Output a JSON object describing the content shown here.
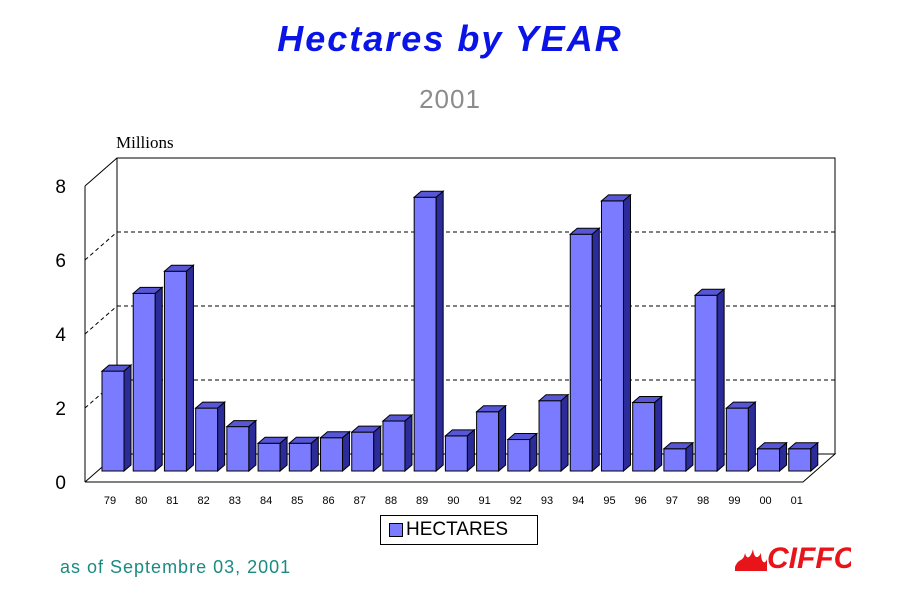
{
  "chart_data": {
    "type": "bar",
    "title": "Hectares by YEAR",
    "subtitle": "2001",
    "unit_label": "Millions",
    "categories": [
      "79",
      "80",
      "81",
      "82",
      "83",
      "84",
      "85",
      "86",
      "87",
      "88",
      "89",
      "90",
      "91",
      "92",
      "93",
      "94",
      "95",
      "96",
      "97",
      "98",
      "99",
      "00",
      "01"
    ],
    "series": [
      {
        "name": "HECTARES",
        "values": [
          2.7,
          4.8,
          5.4,
          1.7,
          1.2,
          0.75,
          0.75,
          0.9,
          1.05,
          1.35,
          7.4,
          0.95,
          1.6,
          0.85,
          1.9,
          6.4,
          7.3,
          1.85,
          0.6,
          4.75,
          1.7,
          0.6,
          0.6
        ]
      }
    ],
    "ylim": [
      0,
      8
    ],
    "yticks": [
      "0",
      "2",
      "4",
      "6",
      "8"
    ],
    "grid": true,
    "legend_placement": "bottom",
    "colors": {
      "bar": "#7b7bff",
      "title": "#0a14e6",
      "subtitle": "#8c8c8c",
      "footer": "#1a8a82"
    }
  },
  "footer": {
    "note": "as of Septembre 03, 2001"
  },
  "logo": {
    "text": "CIFFC",
    "color": "#e8141a"
  }
}
